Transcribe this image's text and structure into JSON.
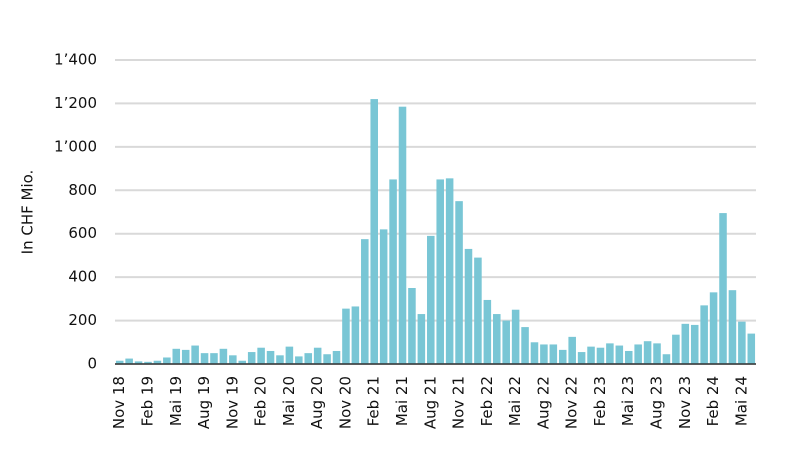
{
  "chart_data": {
    "type": "bar",
    "y_label": "In CHF Mio.",
    "color": "#79c6d5",
    "grid": true,
    "ylim": [
      0,
      1400
    ],
    "yticks": [
      0,
      200,
      400,
      600,
      800,
      {
        "value": 1000,
        "label": "1’000"
      },
      {
        "value": 1200,
        "label": "1’200"
      },
      {
        "value": 1400,
        "label": "1’400"
      }
    ],
    "categories": [
      "Nov 18",
      null,
      null,
      "Feb 19",
      null,
      null,
      "Mai 19",
      null,
      null,
      "Aug 19",
      null,
      null,
      "Nov 19",
      null,
      null,
      "Feb 20",
      null,
      null,
      "Mai 20",
      null,
      null,
      "Aug 20",
      null,
      null,
      "Nov 20",
      null,
      null,
      "Feb 21",
      null,
      null,
      "Mai 21",
      null,
      null,
      "Aug 21",
      null,
      null,
      "Nov 21",
      null,
      null,
      "Feb 22",
      null,
      null,
      "Mai 22",
      null,
      null,
      "Aug 22",
      null,
      null,
      "Nov 22",
      null,
      null,
      "Feb 23",
      null,
      null,
      "Mai 23",
      null,
      null,
      "Aug 23",
      null,
      null,
      "Nov 23",
      null,
      null,
      "Feb 24",
      null,
      null,
      "Mai 24",
      null
    ],
    "values": [
      15,
      25,
      12,
      10,
      15,
      30,
      70,
      65,
      85,
      50,
      50,
      70,
      40,
      15,
      55,
      75,
      60,
      40,
      80,
      35,
      50,
      75,
      45,
      60,
      255,
      265,
      575,
      1220,
      620,
      850,
      1185,
      350,
      230,
      590,
      850,
      855,
      750,
      530,
      490,
      295,
      230,
      200,
      250,
      170,
      100,
      90,
      90,
      65,
      125,
      55,
      80,
      75,
      95,
      85,
      60,
      90,
      105,
      95,
      45,
      135,
      185,
      180,
      270,
      330,
      695,
      340,
      195,
      140
    ]
  }
}
